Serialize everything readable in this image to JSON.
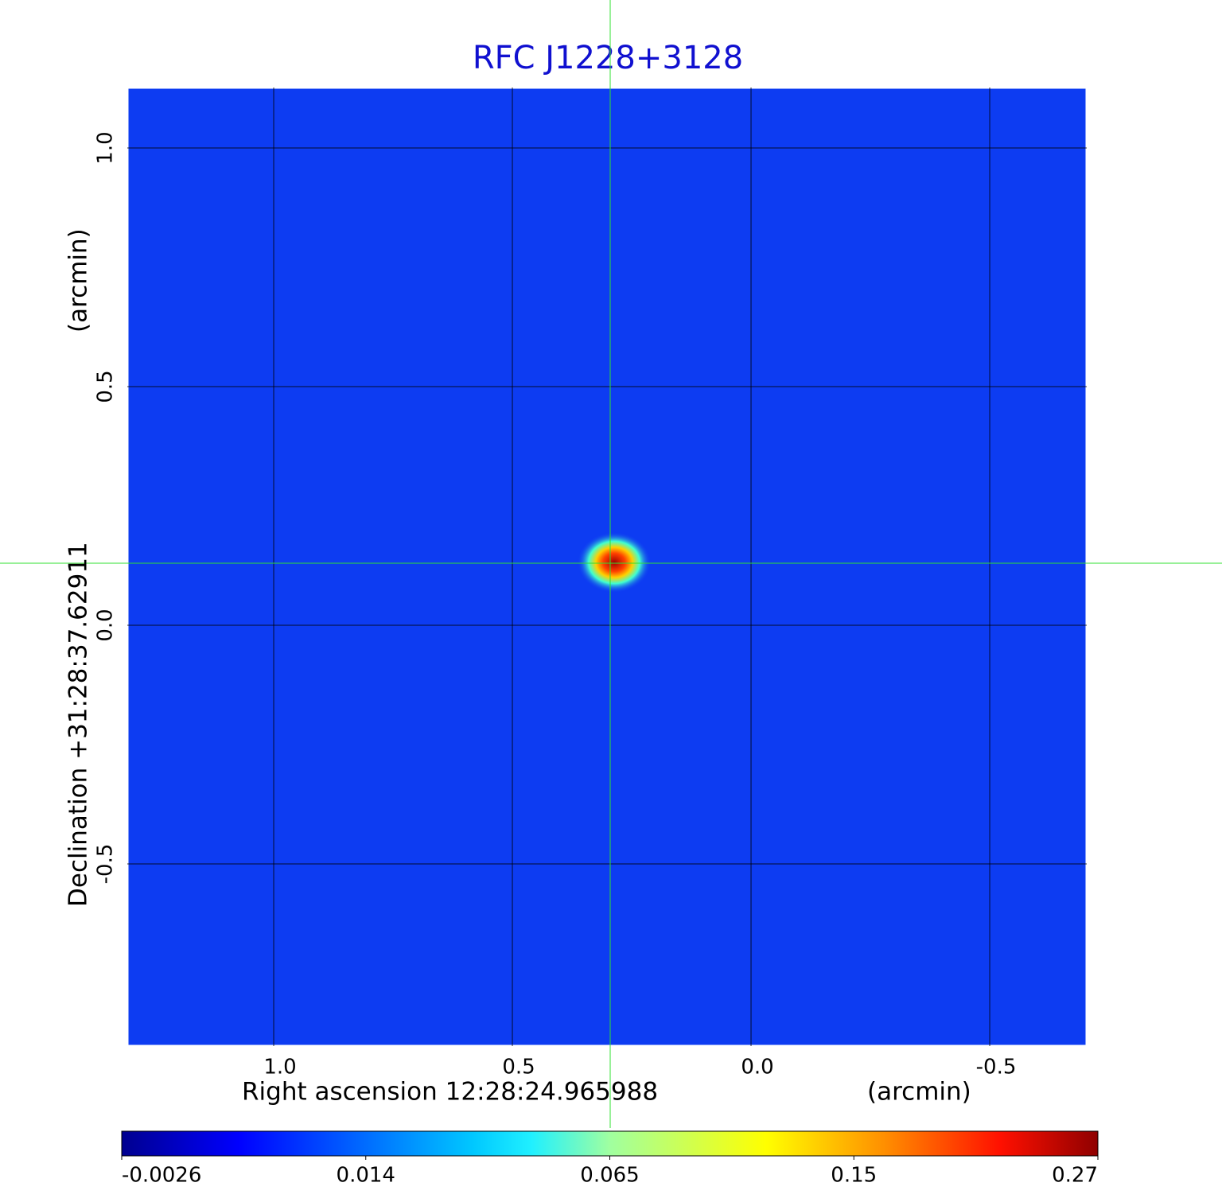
{
  "chart_data": {
    "type": "heatmap",
    "title": "RFC J1228+3128",
    "x_label": "Right ascension  12:28:24.965988",
    "x_unit": "(arcmin)",
    "y_label": "Declination  +31:28:37.62911",
    "y_unit": "(arcmin)",
    "xlim": [
      1.3067,
      -0.7033
    ],
    "ylim": [
      -0.8817,
      1.1267
    ],
    "xticks": [
      {
        "value": 1.0,
        "label": "1.0"
      },
      {
        "value": 0.5,
        "label": "0.5"
      },
      {
        "value": 0.0,
        "label": "0.0"
      },
      {
        "value": -0.5,
        "label": "-0.5"
      }
    ],
    "yticks": [
      {
        "value": 1.0,
        "label": "1.0"
      },
      {
        "value": 0.5,
        "label": "0.5"
      },
      {
        "value": 0.0,
        "label": "0.0"
      },
      {
        "value": -0.5,
        "label": "-0.5"
      }
    ],
    "grid": true,
    "colorbar_ticks": [
      -0.0026,
      0.014,
      0.065,
      0.15,
      0.27
    ]
  }
}
